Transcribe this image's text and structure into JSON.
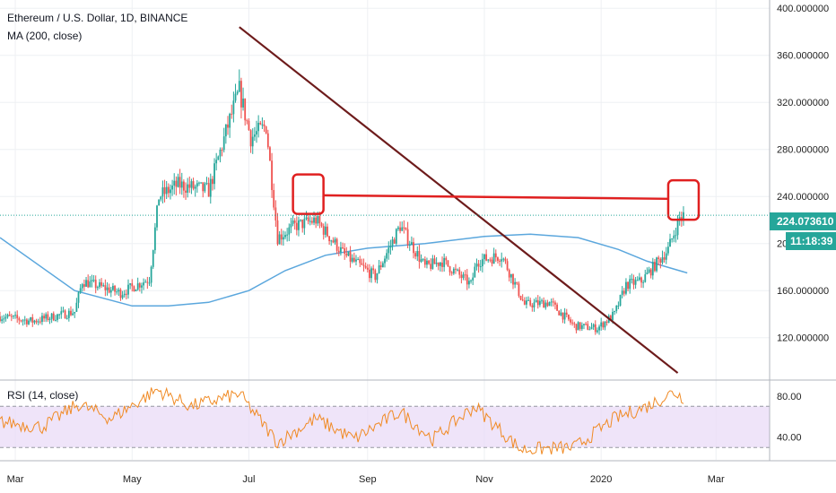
{
  "header": {
    "title": "Ethereum / U.S. Dollar, 1D, BINANCE",
    "ma_label": "MA (200, close)",
    "rsi_label": "RSI (14, close)"
  },
  "price_tags": {
    "last_price": "224.073610",
    "countdown": "11:18:39"
  },
  "colors": {
    "up": "#26a69a",
    "down": "#ef5350",
    "ma": "#5ba7dd",
    "rsi": "#f08a24",
    "rsi_band": "#e8d9f7",
    "trendline": "#6d1b1b",
    "annotation": "#e02020",
    "last_price_line": "#26a69a"
  },
  "chart_data": {
    "type": "candlestick",
    "title": "Ethereum / U.S. Dollar, 1D, BINANCE",
    "x_axis": {
      "range": [
        "2019-02-21",
        "2020-03-29"
      ],
      "ticks": [
        "Mar",
        "May",
        "Jul",
        "Sep",
        "Nov",
        "2020",
        "Mar"
      ],
      "tick_dates": [
        "2019-03-01",
        "2019-05-01",
        "2019-07-01",
        "2019-09-01",
        "2019-11-01",
        "2020-01-01",
        "2020-03-01"
      ]
    },
    "y_axis": {
      "range": [
        87,
        407
      ],
      "ticks": [
        "400.000000",
        "360.000000",
        "320.000000",
        "280.000000",
        "240.000000",
        "200.000000",
        "160.000000",
        "120.000000"
      ],
      "tick_values": [
        400,
        360,
        320,
        280,
        240,
        200,
        160,
        120
      ]
    },
    "price_path": {
      "dates": [
        "2019-02-21",
        "2019-03-10",
        "2019-04-01",
        "2019-04-05",
        "2019-04-25",
        "2019-05-10",
        "2019-05-15",
        "2019-05-25",
        "2019-06-10",
        "2019-06-20",
        "2019-06-26",
        "2019-07-02",
        "2019-07-10",
        "2019-07-16",
        "2019-07-25",
        "2019-08-05",
        "2019-08-20",
        "2019-09-05",
        "2019-09-18",
        "2019-10-01",
        "2019-10-10",
        "2019-10-25",
        "2019-10-28",
        "2019-11-10",
        "2019-11-22",
        "2019-12-05",
        "2019-12-18",
        "2019-12-30",
        "2020-01-08",
        "2020-01-14",
        "2020-01-22",
        "2020-02-05",
        "2020-02-11",
        "2020-02-13"
      ],
      "values": [
        138,
        134,
        142,
        168,
        158,
        170,
        240,
        250,
        245,
        300,
        330,
        290,
        300,
        205,
        215,
        220,
        190,
        172,
        215,
        180,
        185,
        165,
        185,
        190,
        148,
        150,
        130,
        128,
        140,
        165,
        168,
        195,
        222,
        224
      ]
    },
    "ma200": {
      "name": "MA (200, close)",
      "dates": [
        "2019-02-21",
        "2019-04-01",
        "2019-05-01",
        "2019-05-20",
        "2019-06-10",
        "2019-07-01",
        "2019-07-20",
        "2019-08-10",
        "2019-09-01",
        "2019-10-01",
        "2019-11-01",
        "2019-11-25",
        "2019-12-20",
        "2020-01-10",
        "2020-01-25",
        "2020-02-15"
      ],
      "values": [
        205,
        160,
        147,
        147,
        150,
        160,
        177,
        190,
        196,
        200,
        206,
        208,
        205,
        195,
        185,
        175
      ]
    },
    "rsi": {
      "name": "RSI (14, close)",
      "y_ticks": [
        "80.00",
        "40.00"
      ],
      "y_tick_values": [
        80,
        40
      ],
      "bands": [
        70,
        30
      ],
      "dates": [
        "2019-02-21",
        "2019-03-15",
        "2019-04-03",
        "2019-04-20",
        "2019-05-14",
        "2019-06-01",
        "2019-06-26",
        "2019-07-16",
        "2019-08-05",
        "2019-08-25",
        "2019-09-18",
        "2019-10-05",
        "2019-10-27",
        "2019-11-20",
        "2019-12-18",
        "2020-01-08",
        "2020-01-25",
        "2020-02-08",
        "2020-02-13"
      ],
      "values": [
        55,
        50,
        72,
        58,
        86,
        70,
        82,
        35,
        58,
        38,
        65,
        38,
        70,
        28,
        30,
        58,
        70,
        84,
        78
      ]
    },
    "annotations": {
      "trendline": {
        "from": {
          "date": "2019-06-26",
          "value": 384
        },
        "to": {
          "date": "2020-02-10",
          "value": 90
        }
      },
      "horizontal_line": {
        "from": {
          "date": "2019-08-01",
          "value": 241
        },
        "to": {
          "date": "2020-02-13",
          "value": 238
        }
      },
      "highlight_boxes": [
        {
          "date": "2019-08-01",
          "value": 242
        },
        {
          "date": "2020-02-13",
          "value": 237
        }
      ]
    }
  }
}
